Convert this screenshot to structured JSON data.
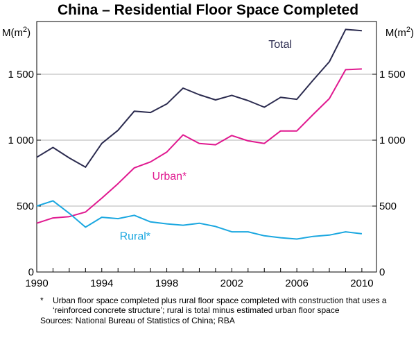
{
  "chart_data": {
    "type": "line",
    "title": "China – Residential Floor Space Completed",
    "ylabel_left": "M(m²)",
    "ylabel_right": "M(m²)",
    "ylim": [
      0,
      1900
    ],
    "yticks": [
      0,
      500,
      1000,
      1500
    ],
    "ytick_labels": [
      "0",
      "500",
      "1 000",
      "1 500"
    ],
    "xlim": [
      1990,
      2010.9
    ],
    "xticks": [
      1990,
      1994,
      1998,
      2002,
      2006,
      2010
    ],
    "xtick_labels": [
      "1990",
      "1994",
      "1998",
      "2002",
      "2006",
      "2010"
    ],
    "grid": true,
    "x": [
      1990,
      1991,
      1992,
      1993,
      1994,
      1995,
      1996,
      1997,
      1998,
      1999,
      2000,
      2001,
      2002,
      2003,
      2004,
      2005,
      2006,
      2007,
      2008,
      2009,
      2010
    ],
    "series": [
      {
        "name": "Total",
        "color": "#2b2b4f",
        "values": [
          870,
          945,
          865,
          795,
          975,
          1075,
          1220,
          1210,
          1275,
          1395,
          1345,
          1305,
          1340,
          1300,
          1250,
          1325,
          1310,
          1455,
          1595,
          1840,
          1830
        ]
      },
      {
        "name": "Urban*",
        "color": "#e0188f",
        "values": [
          370,
          410,
          420,
          455,
          560,
          670,
          790,
          835,
          910,
          1040,
          975,
          965,
          1035,
          995,
          975,
          1070,
          1070,
          1195,
          1315,
          1535,
          1540
        ]
      },
      {
        "name": "Rural*",
        "color": "#1aa7e0",
        "values": [
          500,
          540,
          445,
          340,
          415,
          405,
          430,
          380,
          365,
          355,
          370,
          345,
          305,
          305,
          275,
          260,
          250,
          270,
          280,
          305,
          290
        ]
      }
    ]
  },
  "footnote": {
    "marker": "*",
    "text": "Urban floor space completed plus rural floor space completed with construction that uses a ‘reinforced concrete structure’; rural is total minus estimated urban floor space"
  },
  "sources": "Sources: National Bureau of Statistics of China; RBA"
}
